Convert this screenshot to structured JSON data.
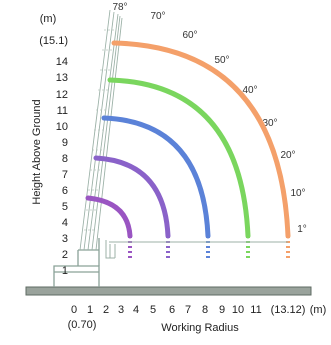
{
  "chart_data": {
    "type": "diagram",
    "xlabel": "Working Radius",
    "x_unit": "(m)",
    "x_ticks": [
      "0",
      "1",
      "2",
      "3",
      "4",
      "5",
      "6",
      "7",
      "8",
      "9",
      "10",
      "11",
      "(13.12)"
    ],
    "x_subtick": "(0.70)",
    "ylabel": "Height Above Ground",
    "y_unit": "(m)",
    "y_ticks": [
      "(15.1)",
      "14",
      "13",
      "12",
      "11",
      "10",
      "9",
      "8",
      "7",
      "6",
      "5",
      "4",
      "3",
      "2",
      "1"
    ],
    "boom_angles": [
      "78°",
      "70°",
      "60°",
      "50°",
      "40°",
      "30°",
      "20°",
      "10°",
      "1°"
    ],
    "boom_lines": [
      {
        "color": "#f4a06a",
        "max_radius": 13.12
      },
      {
        "color": "#7ad65e",
        "max_radius": 11
      },
      {
        "color": "#5b82d8",
        "max_radius": 8.5
      },
      {
        "color": "#8a62c9",
        "max_radius": 5.8
      },
      {
        "color": "#9a55c2",
        "max_radius": 3.4
      }
    ]
  }
}
